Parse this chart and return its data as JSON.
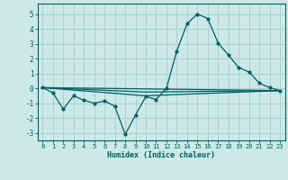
{
  "xlabel": "Humidex (Indice chaleur)",
  "xlim": [
    -0.5,
    23.5
  ],
  "ylim": [
    -3.5,
    5.7
  ],
  "yticks": [
    -3,
    -2,
    -1,
    0,
    1,
    2,
    3,
    4,
    5
  ],
  "xticks": [
    0,
    1,
    2,
    3,
    4,
    5,
    6,
    7,
    8,
    9,
    10,
    11,
    12,
    13,
    14,
    15,
    16,
    17,
    18,
    19,
    20,
    21,
    22,
    23
  ],
  "background_color": "#cce8e8",
  "grid_color": "#aacccc",
  "line_color": "#006060",
  "series0_x": [
    0,
    1,
    2,
    3,
    4,
    5,
    6,
    7,
    8,
    9,
    10,
    11,
    12,
    13,
    14,
    15,
    16,
    17,
    18,
    19,
    20,
    21,
    22,
    23
  ],
  "series0_y": [
    0.05,
    -0.3,
    -1.4,
    -0.5,
    -0.8,
    -1.0,
    -0.85,
    -1.2,
    -3.1,
    -1.8,
    -0.55,
    -0.75,
    0.0,
    2.5,
    4.35,
    5.0,
    4.7,
    3.05,
    2.25,
    1.4,
    1.1,
    0.35,
    0.05,
    -0.15
  ],
  "series1_x": [
    0,
    23
  ],
  "series1_y": [
    0.05,
    -0.15
  ],
  "series2_x": [
    0,
    10,
    23
  ],
  "series2_y": [
    0.05,
    -0.5,
    -0.15
  ],
  "series3_x": [
    0,
    10,
    23
  ],
  "series3_y": [
    0.05,
    -0.25,
    -0.15
  ]
}
